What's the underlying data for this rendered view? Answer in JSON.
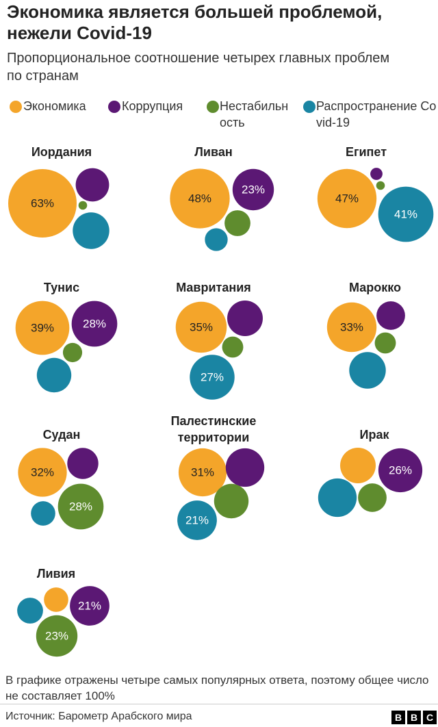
{
  "chart_data": {
    "type": "bubble",
    "title": "Экономика является большей проблемой, нежели Covid-19",
    "subtitle": "Пропорциональное соотношение четырех главных проблем по странам",
    "categories": [
      "Иордания",
      "Ливан",
      "Египет",
      "Тунис",
      "Мавритания",
      "Марокко",
      "Судан",
      "Палестинские территории",
      "Ирак",
      "Ливия"
    ],
    "series": [
      {
        "name": "Экономика",
        "color": "#f4a52a",
        "values": [
          63,
          48,
          47,
          39,
          35,
          33,
          32,
          31,
          17,
          8
        ],
        "value_labels": [
          "63%",
          "48%",
          "47%",
          "39%",
          "35%",
          "33%",
          "32%",
          "31%",
          null,
          null
        ]
      },
      {
        "name": "Коррупция",
        "color": "#5b1874",
        "values": [
          15,
          23,
          2,
          28,
          17,
          11,
          13,
          20,
          26,
          21
        ],
        "value_labels": [
          null,
          "23%",
          null,
          "28%",
          null,
          null,
          null,
          null,
          "26%",
          "21%"
        ]
      },
      {
        "name": "Нестабильность",
        "color": "#5f8c2e",
        "values": [
          1,
          9,
          1,
          5,
          6,
          6,
          28,
          16,
          11,
          23
        ],
        "value_labels": [
          null,
          null,
          null,
          null,
          null,
          null,
          "28%",
          null,
          null,
          "23%"
        ]
      },
      {
        "name": "Распространение Covid-19",
        "color": "#1a85a3",
        "values": [
          18,
          7,
          41,
          16,
          27,
          18,
          8,
          21,
          20,
          9
        ],
        "value_labels": [
          null,
          null,
          "41%",
          null,
          "27%",
          null,
          null,
          "21%",
          null,
          null
        ]
      }
    ],
    "note": "В графике отражены четыре самых популярных ответа, поэтому общее число не составляет 100%",
    "source": "Источник: Барометр Арабского мира",
    "logo": [
      "B",
      "B",
      "C"
    ]
  }
}
